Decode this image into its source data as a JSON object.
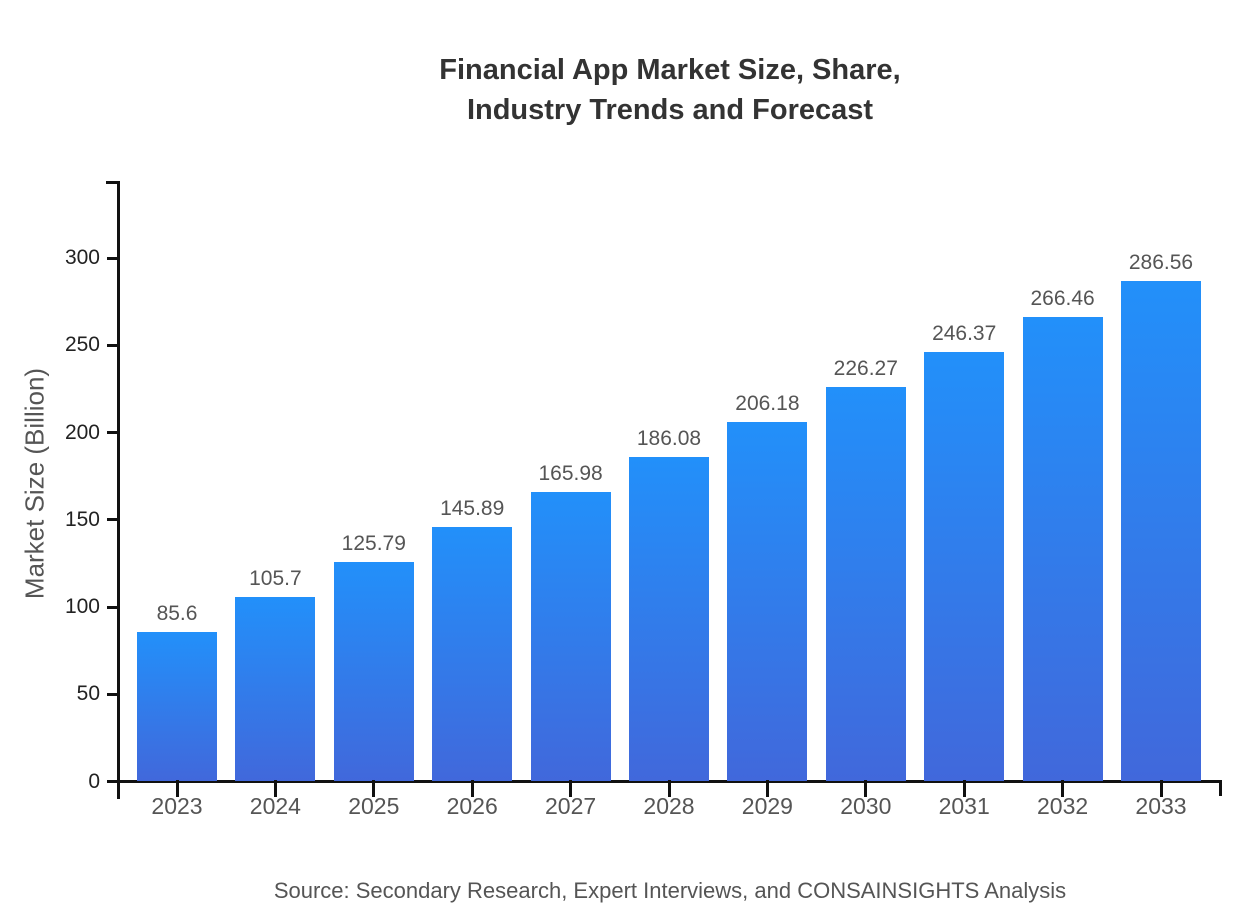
{
  "chart_data": {
    "type": "bar",
    "title": "Financial App Market Size, Share, Industry Trends and Forecast",
    "title_lines": [
      "Financial App Market Size, Share,",
      "Industry Trends and Forecast"
    ],
    "ylabel": "Market Size (Billion)",
    "xlabel": "",
    "categories": [
      "2023",
      "2024",
      "2025",
      "2026",
      "2027",
      "2028",
      "2029",
      "2030",
      "2031",
      "2032",
      "2033"
    ],
    "values": [
      85.6,
      105.7,
      125.79,
      145.89,
      165.98,
      186.08,
      206.18,
      226.27,
      246.37,
      266.46,
      286.56
    ],
    "value_labels": [
      "85.6",
      "105.7",
      "125.79",
      "145.89",
      "165.98",
      "186.08",
      "206.18",
      "226.27",
      "246.37",
      "266.46",
      "286.56"
    ],
    "yticks": [
      0,
      50,
      100,
      150,
      200,
      250,
      300
    ],
    "ylim": [
      0,
      345
    ],
    "grid": false,
    "legend": "none",
    "colors": {
      "bar_gradient_top": "#2290fa",
      "bar_gradient_bottom": "#4168db",
      "axis": "#111111",
      "ytick_label": "#222222",
      "xtick_label": "#555555",
      "value_label": "#555555",
      "title": "#333333",
      "ylabel": "#555555",
      "source": "#555555",
      "background": "#ffffff"
    }
  },
  "footer": {
    "source_text": "Source: Secondary Research, Expert Interviews, and CONSAINSIGHTS Analysis"
  }
}
